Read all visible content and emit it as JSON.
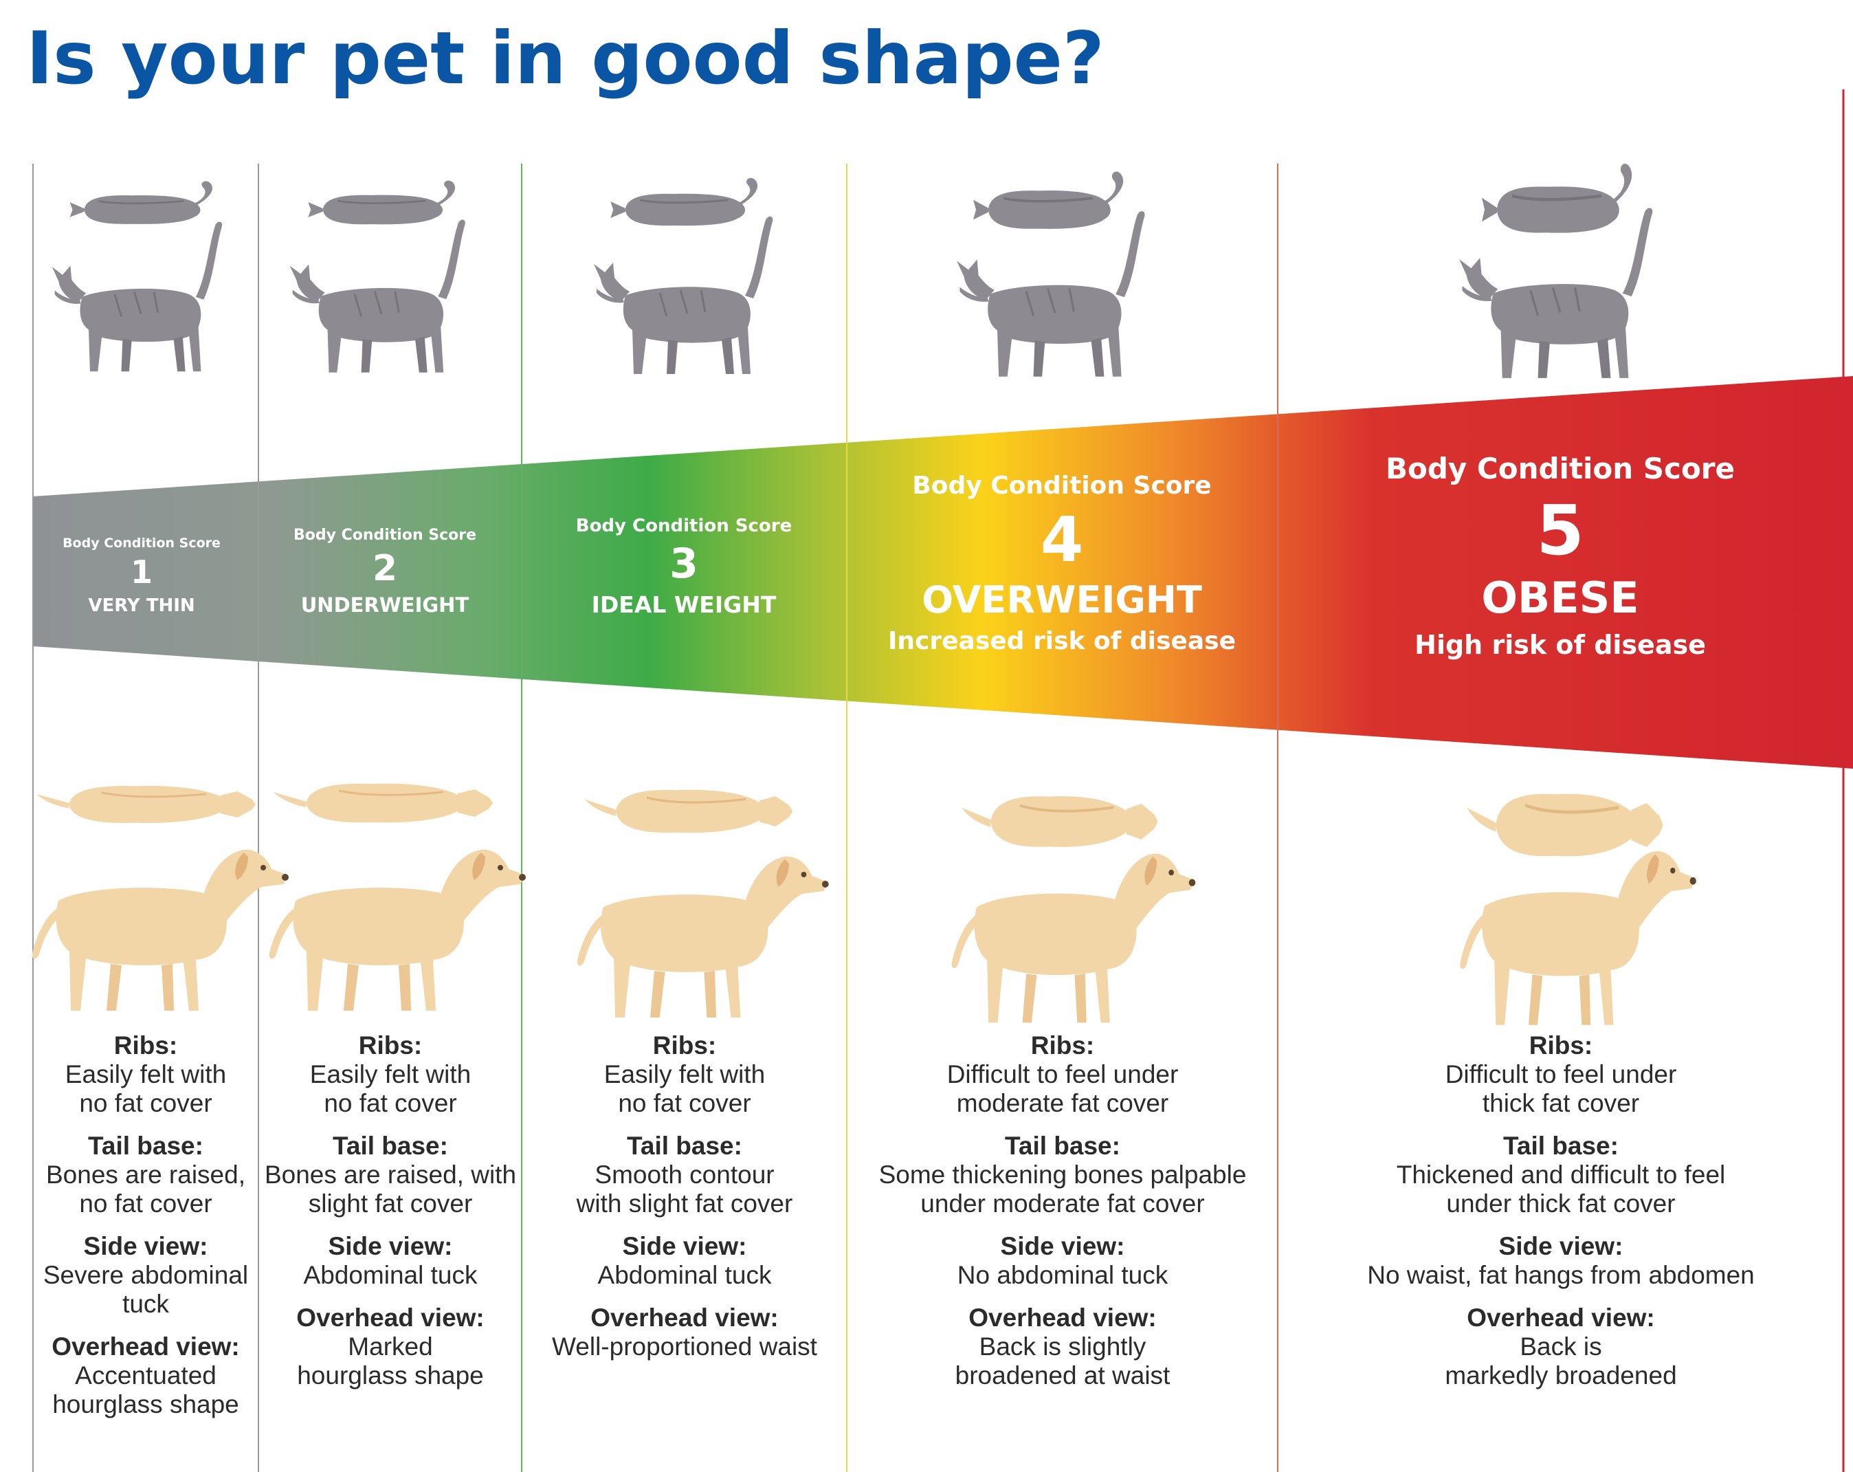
{
  "title": "Is your pet in good shape?",
  "colors": {
    "title": "#0a55a4",
    "band_grey": "#8f9196",
    "band_green": "#3eab47",
    "band_yellow": "#fbd21a",
    "band_orange": "#f08c2a",
    "band_red": "#d1252f",
    "cat_fur": "#8e8a92",
    "dog_fur": "#f3d6a8"
  },
  "icons": [
    "cat-overhead-icon",
    "cat-side-icon",
    "dog-overhead-icon",
    "dog-side-icon"
  ],
  "scores": [
    {
      "label": "Body Condition Score",
      "number": "1",
      "category": "VERY THIN",
      "risk": "",
      "ribs_heading": "Ribs:",
      "ribs": "Easily felt with\nno fat cover",
      "tail_heading": "Tail base:",
      "tail": "Bones are raised,\nno fat cover",
      "side_heading": "Side view:",
      "side": "Severe abdominal\ntuck",
      "overhead_heading": "Overhead view:",
      "overhead": "Accentuated\nhourglass shape"
    },
    {
      "label": "Body Condition Score",
      "number": "2",
      "category": "UNDERWEIGHT",
      "risk": "",
      "ribs_heading": "Ribs:",
      "ribs": "Easily felt with\nno fat cover",
      "tail_heading": "Tail base:",
      "tail": "Bones are raised, with\nslight fat cover",
      "side_heading": "Side view:",
      "side": "Abdominal tuck",
      "overhead_heading": "Overhead view:",
      "overhead": "Marked\nhourglass shape"
    },
    {
      "label": "Body Condition Score",
      "number": "3",
      "category": "IDEAL WEIGHT",
      "risk": "",
      "ribs_heading": "Ribs:",
      "ribs": "Easily felt with\nno fat cover",
      "tail_heading": "Tail base:",
      "tail": "Smooth contour\nwith slight fat cover",
      "side_heading": "Side view:",
      "side": "Abdominal tuck",
      "overhead_heading": "Overhead view:",
      "overhead": "Well-proportioned waist"
    },
    {
      "label": "Body Condition Score",
      "number": "4",
      "category": "OVERWEIGHT",
      "risk": "Increased risk of disease",
      "ribs_heading": "Ribs:",
      "ribs": "Difficult to feel under\nmoderate fat cover",
      "tail_heading": "Tail base:",
      "tail": "Some thickening bones palpable\nunder moderate fat cover",
      "side_heading": "Side view:",
      "side": "No abdominal tuck",
      "overhead_heading": "Overhead view:",
      "overhead": "Back is slightly\nbroadened at waist"
    },
    {
      "label": "Body Condition Score",
      "number": "5",
      "category": "OBESE",
      "risk": "High risk of disease",
      "ribs_heading": "Ribs:",
      "ribs": "Difficult to feel under\nthick fat cover",
      "tail_heading": "Tail base:",
      "tail": "Thickened and difficult to feel\nunder thick fat cover",
      "side_heading": "Side view:",
      "side": "No waist, fat hangs from abdomen",
      "overhead_heading": "Overhead view:",
      "overhead": "Back is\nmarkedly broadened"
    }
  ]
}
